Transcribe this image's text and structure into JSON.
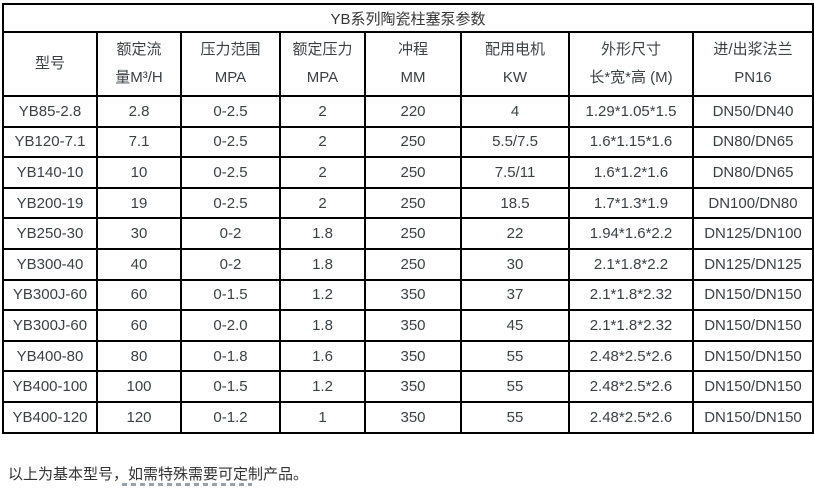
{
  "title": "YB系列陶瓷柱塞泵参数",
  "columns": [
    {
      "line1": "型号",
      "line2": ""
    },
    {
      "line1": "额定流",
      "line2": "量M³/H"
    },
    {
      "line1": "压力范围",
      "line2": "MPA"
    },
    {
      "line1": "额定压力",
      "line2": "MPA"
    },
    {
      "line1": "冲程",
      "line2": "MM"
    },
    {
      "line1": "配用电机",
      "line2": "KW"
    },
    {
      "line1": "外形尺寸",
      "line2": "长*宽*高 (M)"
    },
    {
      "line1": "进/出浆法兰",
      "line2": "PN16"
    }
  ],
  "rows": [
    [
      "YB85-2.8",
      "2.8",
      "0-2.5",
      "2",
      "220",
      "4",
      "1.29*1.05*1.5",
      "DN50/DN40"
    ],
    [
      "YB120-7.1",
      "7.1",
      "0-2.5",
      "2",
      "250",
      "5.5/7.5",
      "1.6*1.15*1.6",
      "DN80/DN65"
    ],
    [
      "YB140-10",
      "10",
      "0-2.5",
      "2",
      "250",
      "7.5/11",
      "1.6*1.2*1.6",
      "DN80/DN65"
    ],
    [
      "YB200-19",
      "19",
      "0-2.5",
      "2",
      "250",
      "18.5",
      "1.7*1.3*1.9",
      "DN100/DN80"
    ],
    [
      "YB250-30",
      "30",
      "0-2",
      "1.8",
      "250",
      "22",
      "1.94*1.6*2.2",
      "DN125/DN100"
    ],
    [
      "YB300-40",
      "40",
      "0-2",
      "1.8",
      "250",
      "30",
      "2.1*1.8*2.2",
      "DN125/DN125"
    ],
    [
      "YB300J-60",
      "60",
      "0-1.5",
      "1.2",
      "350",
      "37",
      "2.1*1.8*2.32",
      "DN150/DN150"
    ],
    [
      "YB300J-60",
      "60",
      "0-2.0",
      "1.8",
      "350",
      "45",
      "2.1*1.8*2.32",
      "DN150/DN150"
    ],
    [
      "YB400-80",
      "80",
      "0-1.8",
      "1.6",
      "350",
      "55",
      "2.48*2.5*2.6",
      "DN150/DN150"
    ],
    [
      "YB400-100",
      "100",
      "0-1.5",
      "1.2",
      "350",
      "55",
      "2.48*2.5*2.6",
      "DN150/DN150"
    ],
    [
      "YB400-120",
      "120",
      "0-1.2",
      "1",
      "350",
      "55",
      "2.48*2.5*2.6",
      "DN150/DN150"
    ]
  ],
  "footer_note": "以上为基本型号，如需特殊需要可定制产品。",
  "colors": {
    "border": "#000000",
    "text": "#3c4043",
    "background": "#ffffff"
  }
}
